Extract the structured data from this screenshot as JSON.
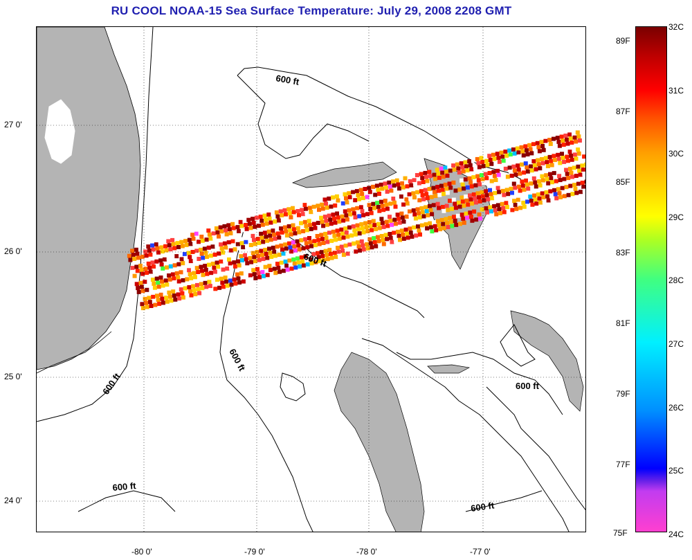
{
  "title": "RU COOL  NOAA-15  Sea Surface Temperature:  July 29, 2008 2208 GMT",
  "axes": {
    "x_ticks": [
      "-80 0'",
      "-79 0'",
      "-78 0'",
      "-77 0'"
    ],
    "y_ticks": [
      "27 0'",
      "26 0'",
      "25 0'",
      "24 0'"
    ]
  },
  "contour_label": "600 ft",
  "colorbar": {
    "fahrenheit": [
      "89F",
      "87F",
      "85F",
      "83F",
      "81F",
      "79F",
      "77F",
      "75F"
    ],
    "celsius": [
      "32C",
      "31C",
      "30C",
      "29C",
      "28C",
      "27C",
      "26C",
      "25C",
      "24C"
    ]
  },
  "colors": {
    "title": "#1f1fb0",
    "land": "#b4b4b4"
  }
}
